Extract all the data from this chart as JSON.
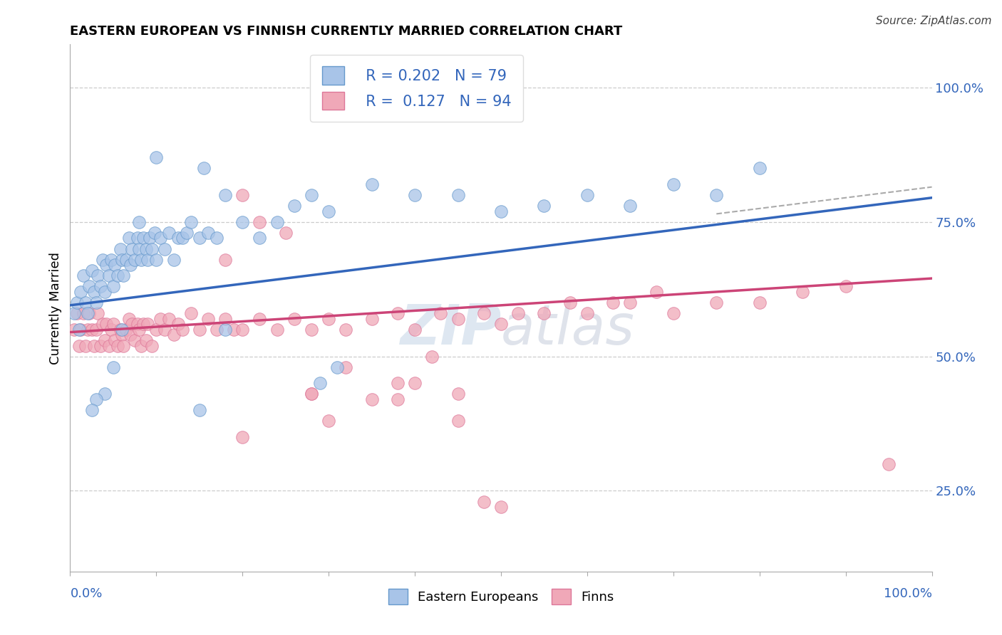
{
  "title": "EASTERN EUROPEAN VS FINNISH CURRENTLY MARRIED CORRELATION CHART",
  "source": "Source: ZipAtlas.com",
  "ylabel": "Currently Married",
  "xlim": [
    0.0,
    1.0
  ],
  "ylim": [
    0.1,
    1.08
  ],
  "ytick_values": [
    0.25,
    0.5,
    0.75,
    1.0
  ],
  "legend_r_blue": "R = 0.202",
  "legend_n_blue": "N = 79",
  "legend_r_pink": "R =  0.127",
  "legend_n_pink": "N = 94",
  "blue_color": "#a8c4e8",
  "pink_color": "#f0a8b8",
  "blue_edge": "#6699cc",
  "pink_edge": "#dd7799",
  "blue_line_color": "#3366bb",
  "pink_line_color": "#cc4477",
  "background_color": "#ffffff",
  "grid_color": "#cccccc",
  "watermark_color": "#c8d8e8",
  "blue_x": [
    0.005,
    0.008,
    0.01,
    0.012,
    0.015,
    0.018,
    0.02,
    0.022,
    0.025,
    0.028,
    0.03,
    0.032,
    0.035,
    0.038,
    0.04,
    0.042,
    0.045,
    0.048,
    0.05,
    0.052,
    0.055,
    0.058,
    0.06,
    0.062,
    0.065,
    0.068,
    0.07,
    0.072,
    0.075,
    0.078,
    0.08,
    0.082,
    0.085,
    0.088,
    0.09,
    0.092,
    0.095,
    0.098,
    0.1,
    0.105,
    0.11,
    0.115,
    0.12,
    0.125,
    0.13,
    0.135,
    0.14,
    0.15,
    0.16,
    0.17,
    0.18,
    0.2,
    0.22,
    0.24,
    0.26,
    0.28,
    0.3,
    0.35,
    0.4,
    0.45,
    0.5,
    0.55,
    0.6,
    0.65,
    0.7,
    0.75,
    0.8,
    0.29,
    0.31,
    0.18,
    0.15,
    0.155,
    0.1,
    0.08,
    0.06,
    0.05,
    0.04,
    0.03,
    0.025
  ],
  "blue_y": [
    0.58,
    0.6,
    0.55,
    0.62,
    0.65,
    0.6,
    0.58,
    0.63,
    0.66,
    0.62,
    0.6,
    0.65,
    0.63,
    0.68,
    0.62,
    0.67,
    0.65,
    0.68,
    0.63,
    0.67,
    0.65,
    0.7,
    0.68,
    0.65,
    0.68,
    0.72,
    0.67,
    0.7,
    0.68,
    0.72,
    0.7,
    0.68,
    0.72,
    0.7,
    0.68,
    0.72,
    0.7,
    0.73,
    0.68,
    0.72,
    0.7,
    0.73,
    0.68,
    0.72,
    0.72,
    0.73,
    0.75,
    0.72,
    0.73,
    0.72,
    0.8,
    0.75,
    0.72,
    0.75,
    0.78,
    0.8,
    0.77,
    0.82,
    0.8,
    0.8,
    0.77,
    0.78,
    0.8,
    0.78,
    0.82,
    0.8,
    0.85,
    0.45,
    0.48,
    0.55,
    0.4,
    0.85,
    0.87,
    0.75,
    0.55,
    0.48,
    0.43,
    0.42,
    0.4
  ],
  "pink_x": [
    0.005,
    0.008,
    0.01,
    0.012,
    0.015,
    0.018,
    0.02,
    0.022,
    0.025,
    0.028,
    0.03,
    0.032,
    0.035,
    0.038,
    0.04,
    0.042,
    0.045,
    0.048,
    0.05,
    0.052,
    0.055,
    0.058,
    0.06,
    0.062,
    0.065,
    0.068,
    0.07,
    0.072,
    0.075,
    0.078,
    0.08,
    0.082,
    0.085,
    0.088,
    0.09,
    0.095,
    0.1,
    0.105,
    0.11,
    0.115,
    0.12,
    0.125,
    0.13,
    0.14,
    0.15,
    0.16,
    0.17,
    0.18,
    0.19,
    0.2,
    0.22,
    0.24,
    0.26,
    0.28,
    0.3,
    0.32,
    0.35,
    0.38,
    0.4,
    0.43,
    0.45,
    0.48,
    0.5,
    0.52,
    0.55,
    0.58,
    0.6,
    0.63,
    0.65,
    0.68,
    0.7,
    0.75,
    0.8,
    0.85,
    0.9,
    0.95,
    0.18,
    0.2,
    0.22,
    0.25,
    0.28,
    0.32,
    0.35,
    0.38,
    0.4,
    0.42,
    0.3,
    0.28,
    0.38,
    0.45,
    0.2,
    0.45,
    0.48,
    0.5
  ],
  "pink_y": [
    0.55,
    0.58,
    0.52,
    0.55,
    0.58,
    0.52,
    0.55,
    0.58,
    0.55,
    0.52,
    0.55,
    0.58,
    0.52,
    0.56,
    0.53,
    0.56,
    0.52,
    0.55,
    0.56,
    0.53,
    0.52,
    0.55,
    0.54,
    0.52,
    0.55,
    0.57,
    0.54,
    0.56,
    0.53,
    0.56,
    0.55,
    0.52,
    0.56,
    0.53,
    0.56,
    0.52,
    0.55,
    0.57,
    0.55,
    0.57,
    0.54,
    0.56,
    0.55,
    0.58,
    0.55,
    0.57,
    0.55,
    0.57,
    0.55,
    0.55,
    0.57,
    0.55,
    0.57,
    0.55,
    0.57,
    0.55,
    0.57,
    0.58,
    0.55,
    0.58,
    0.57,
    0.58,
    0.56,
    0.58,
    0.58,
    0.6,
    0.58,
    0.6,
    0.6,
    0.62,
    0.58,
    0.6,
    0.6,
    0.62,
    0.63,
    0.3,
    0.68,
    0.8,
    0.75,
    0.73,
    0.43,
    0.48,
    0.42,
    0.45,
    0.45,
    0.5,
    0.38,
    0.43,
    0.42,
    0.43,
    0.35,
    0.38,
    0.23,
    0.22
  ],
  "blue_line_x0": 0.0,
  "blue_line_y0": 0.595,
  "blue_line_x1": 1.0,
  "blue_line_y1": 0.795,
  "pink_line_x0": 0.0,
  "pink_line_y0": 0.545,
  "pink_line_x1": 1.0,
  "pink_line_y1": 0.645,
  "dash_line_x0": 0.75,
  "dash_line_y0": 0.765,
  "dash_line_x1": 1.0,
  "dash_line_y1": 0.815
}
